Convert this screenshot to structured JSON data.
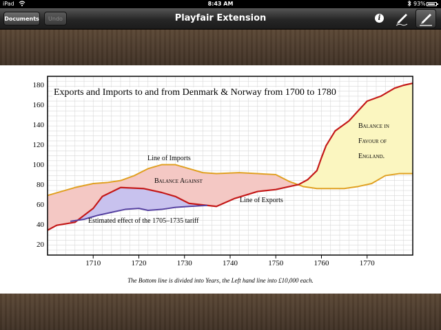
{
  "status_bar": {
    "carrier": "iPad",
    "time": "8:43 AM",
    "battery": "93%",
    "battery_level": 0.93
  },
  "toolbar": {
    "documents_label": "Documents",
    "undo_label": "Undo",
    "title": "Playfair Extension",
    "icons": [
      "info-icon",
      "pen-icon",
      "pen-selected-icon"
    ]
  },
  "chart_data": {
    "type": "line",
    "title": "Exports and Imports to and from Denmark & Norway from 1700 to 1780",
    "caption": "The Bottom line is divided into Years, the Left hand line into £10,000 each.",
    "xlim": [
      1700,
      1780
    ],
    "ylim": [
      10,
      190
    ],
    "x_ticks": [
      1710,
      1720,
      1730,
      1740,
      1750,
      1760,
      1770
    ],
    "y_ticks": [
      20,
      40,
      60,
      80,
      100,
      120,
      140,
      160,
      180
    ],
    "grid": true,
    "series": [
      {
        "name": "Line of Imports",
        "color": "#e0a020",
        "x": [
          1700,
          1703,
          1706,
          1710,
          1713,
          1716,
          1719,
          1722,
          1725,
          1728,
          1731,
          1734,
          1737,
          1742,
          1746,
          1750,
          1753,
          1756,
          1759,
          1762,
          1765,
          1768,
          1771,
          1774,
          1777,
          1780
        ],
        "y": [
          70,
          74,
          78,
          82,
          83,
          85,
          90,
          97,
          101,
          101,
          97,
          93,
          92,
          93,
          92,
          91,
          84,
          79,
          77,
          77,
          77,
          79,
          82,
          90,
          92,
          92
        ]
      },
      {
        "name": "Line of Exports",
        "color": "#c41818",
        "x": [
          1700,
          1702,
          1706,
          1710,
          1712,
          1716,
          1721,
          1725,
          1728,
          1731,
          1737,
          1741,
          1746,
          1750,
          1753,
          1755,
          1757,
          1759,
          1760,
          1761,
          1763,
          1766,
          1768,
          1770,
          1773,
          1776,
          1778,
          1780
        ],
        "y": [
          35,
          40,
          43,
          57,
          69,
          78,
          77,
          73,
          69,
          62,
          59,
          67,
          74,
          76,
          79,
          81,
          86,
          95,
          108,
          120,
          135,
          145,
          155,
          165,
          170,
          178,
          181,
          183
        ]
      },
      {
        "name": "Estimated effect of the 1705–1735 tariff",
        "color": "#5540a0",
        "x": [
          1705,
          1708,
          1711,
          1714,
          1717,
          1720,
          1722,
          1725,
          1728,
          1731,
          1735
        ],
        "y": [
          44,
          46,
          50,
          53,
          56,
          57,
          55,
          56,
          58,
          59,
          60
        ]
      }
    ],
    "annotations": {
      "imports": "Line of Imports",
      "exports": "Line of Exports",
      "tariff": "Estimated effect of the 1705–1735 tariff",
      "balance_against": "Balance Against",
      "balance_favour": [
        "Balance in",
        "Favour of",
        "England."
      ]
    },
    "area_colors": {
      "against": "#f4c8c4",
      "favour": "#fbf6c0",
      "tariff": "#c8c2ee"
    }
  }
}
